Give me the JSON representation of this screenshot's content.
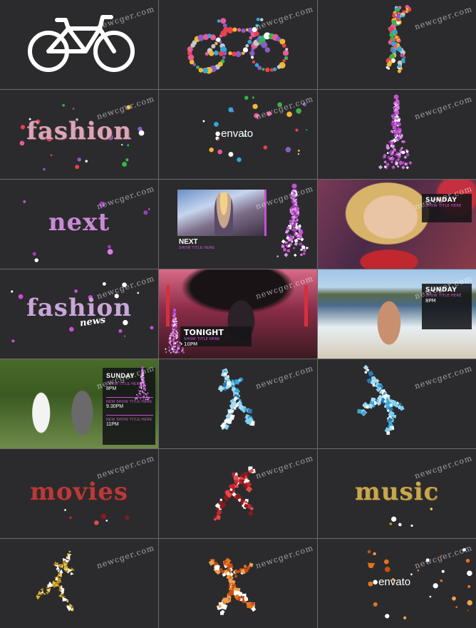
{
  "watermark": "newcger.com",
  "words": {
    "fashion": "fashion",
    "next": "next",
    "fashion_news_main": "fashion",
    "fashion_news_script": "news",
    "movies": "movies",
    "music": "music"
  },
  "brand": {
    "name": "envato"
  },
  "next_card": {
    "title": "NEXT",
    "subtitle": "SHOW TITLE HERE"
  },
  "tonight_card": {
    "title": "TONIGHT",
    "subtitle": "SHOW TITLE HERE",
    "time": "10PM"
  },
  "sunday_card_small": {
    "day": "SUNDAY",
    "subtitle": "SHOW TITLE HERE"
  },
  "sunday_card_beach": {
    "day": "SUNDAY",
    "subtitle": "SHOW TITLE HERE",
    "time": "8PM"
  },
  "schedule_card": {
    "day": "SUNDAY",
    "items": [
      {
        "title": "SHOW TITLE HERE",
        "time": "8PM"
      },
      {
        "title": "NEW SHOW TITLE HERE",
        "time": "9.30PM"
      },
      {
        "title": "NEW SHOW TITLE HERE",
        "time": "11PM"
      }
    ]
  },
  "colors": {
    "cell_bg": "#2b2b2d",
    "accent_purple": "#c84fd2",
    "accent_blue": "#3ba8d8",
    "accent_red": "#c8262e",
    "accent_gold": "#e0b52a",
    "accent_orange": "#e8731e"
  }
}
